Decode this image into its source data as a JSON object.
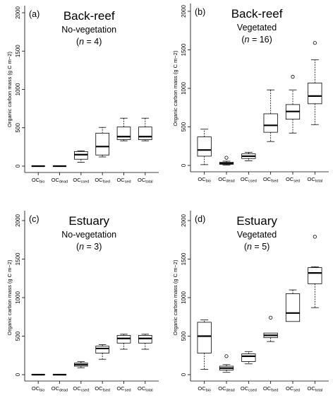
{
  "chart_data": [
    {
      "type": "box",
      "panel_label": "(a)",
      "title": "Back-reef",
      "subtitle": "No-vegetation",
      "n_label": "4",
      "ylabel": "Organic carbon mass (g C m−2)",
      "ylim": [
        0,
        2000
      ],
      "yticks": [
        "0",
        "500",
        "1000",
        "1500",
        "2000"
      ],
      "categories": [
        {
          "main": "OC",
          "sub": "bio"
        },
        {
          "main": "OC",
          "sub": "dead"
        },
        {
          "main": "OC",
          "sub": "csed"
        },
        {
          "main": "OC",
          "sub": "fsed"
        },
        {
          "main": "OC",
          "sub": "sed"
        },
        {
          "main": "OC",
          "sub": "total"
        }
      ],
      "boxes": [
        {
          "min": 0,
          "q1": 0,
          "median": 0,
          "q3": 0,
          "max": 0,
          "outliers": []
        },
        {
          "min": 0,
          "q1": 0,
          "median": 0,
          "q3": 0,
          "max": 0,
          "outliers": []
        },
        {
          "min": 50,
          "q1": 90,
          "median": 150,
          "q3": 190,
          "max": 200,
          "outliers": []
        },
        {
          "min": 120,
          "q1": 145,
          "median": 255,
          "q3": 430,
          "max": 505,
          "outliers": []
        },
        {
          "min": 330,
          "q1": 345,
          "median": 385,
          "q3": 510,
          "max": 625,
          "outliers": []
        },
        {
          "min": 330,
          "q1": 345,
          "median": 385,
          "q3": 510,
          "max": 625,
          "outliers": []
        }
      ]
    },
    {
      "type": "box",
      "panel_label": "(b)",
      "title": "Back-reef",
      "subtitle": "Vegetated",
      "n_label": "16",
      "ylabel": "Organic carbon mass (g C m−2)",
      "ylim": [
        0,
        2000
      ],
      "yticks": [
        "0",
        "500",
        "1000",
        "1500",
        "2000"
      ],
      "categories": [
        {
          "main": "OC",
          "sub": "bio"
        },
        {
          "main": "OC",
          "sub": "dead"
        },
        {
          "main": "OC",
          "sub": "csed"
        },
        {
          "main": "OC",
          "sub": "fsed"
        },
        {
          "main": "OC",
          "sub": "sed"
        },
        {
          "main": "OC",
          "sub": "total"
        }
      ],
      "boxes": [
        {
          "min": 10,
          "q1": 120,
          "median": 200,
          "q3": 370,
          "max": 470,
          "outliers": []
        },
        {
          "min": 5,
          "q1": 15,
          "median": 25,
          "q3": 40,
          "max": 55,
          "outliers": [
            100
          ]
        },
        {
          "min": 60,
          "q1": 90,
          "median": 120,
          "q3": 150,
          "max": 170,
          "outliers": []
        },
        {
          "min": 310,
          "q1": 430,
          "median": 520,
          "q3": 670,
          "max": 980,
          "outliers": []
        },
        {
          "min": 420,
          "q1": 600,
          "median": 700,
          "q3": 790,
          "max": 980,
          "outliers": [
            1150
          ]
        },
        {
          "min": 530,
          "q1": 800,
          "median": 900,
          "q3": 1070,
          "max": 1370,
          "outliers": [
            1590
          ]
        }
      ]
    },
    {
      "type": "box",
      "panel_label": "(c)",
      "title": "Estuary",
      "subtitle": "No-vegetation",
      "n_label": "3",
      "ylabel": "Organic carbon mass (g C m−2)",
      "ylim": [
        0,
        2000
      ],
      "yticks": [
        "0",
        "500",
        "1000",
        "1500",
        "2000"
      ],
      "categories": [
        {
          "main": "OC",
          "sub": "bio"
        },
        {
          "main": "OC",
          "sub": "dead"
        },
        {
          "main": "OC",
          "sub": "csed"
        },
        {
          "main": "OC",
          "sub": "fsed"
        },
        {
          "main": "OC",
          "sub": "sed"
        },
        {
          "main": "OC",
          "sub": "total"
        }
      ],
      "boxes": [
        {
          "min": 0,
          "q1": 0,
          "median": 0,
          "q3": 0,
          "max": 0,
          "outliers": []
        },
        {
          "min": 0,
          "q1": 0,
          "median": 0,
          "q3": 0,
          "max": 0,
          "outliers": []
        },
        {
          "min": 90,
          "q1": 110,
          "median": 130,
          "q3": 150,
          "max": 170,
          "outliers": []
        },
        {
          "min": 200,
          "q1": 280,
          "median": 340,
          "q3": 370,
          "max": 390,
          "outliers": []
        },
        {
          "min": 330,
          "q1": 410,
          "median": 470,
          "q3": 510,
          "max": 525,
          "outliers": []
        },
        {
          "min": 330,
          "q1": 410,
          "median": 470,
          "q3": 510,
          "max": 525,
          "outliers": []
        }
      ]
    },
    {
      "type": "box",
      "panel_label": "(d)",
      "title": "Estuary",
      "subtitle": "Vegetated",
      "n_label": "5",
      "ylabel": "Organic carbon mass (g C m−2)",
      "ylim": [
        0,
        2000
      ],
      "yticks": [
        "0",
        "500",
        "1000",
        "1500",
        "2000"
      ],
      "categories": [
        {
          "main": "OC",
          "sub": "bio"
        },
        {
          "main": "OC",
          "sub": "dead"
        },
        {
          "main": "OC",
          "sub": "csed"
        },
        {
          "main": "OC",
          "sub": "fsed"
        },
        {
          "main": "OC",
          "sub": "sed"
        },
        {
          "main": "OC",
          "sub": "total"
        }
      ],
      "boxes": [
        {
          "min": 70,
          "q1": 280,
          "median": 500,
          "q3": 680,
          "max": 710,
          "outliers": []
        },
        {
          "min": 30,
          "q1": 60,
          "median": 85,
          "q3": 110,
          "max": 130,
          "outliers": [
            240
          ]
        },
        {
          "min": 140,
          "q1": 170,
          "median": 240,
          "q3": 270,
          "max": 300,
          "outliers": []
        },
        {
          "min": 430,
          "q1": 480,
          "median": 510,
          "q3": 540,
          "max": 540,
          "outliers": [
            740
          ]
        },
        {
          "min": 690,
          "q1": 690,
          "median": 800,
          "q3": 1050,
          "max": 1100,
          "outliers": []
        },
        {
          "min": 870,
          "q1": 1180,
          "median": 1320,
          "q3": 1390,
          "max": 1400,
          "outliers": [
            1790
          ]
        }
      ]
    }
  ]
}
